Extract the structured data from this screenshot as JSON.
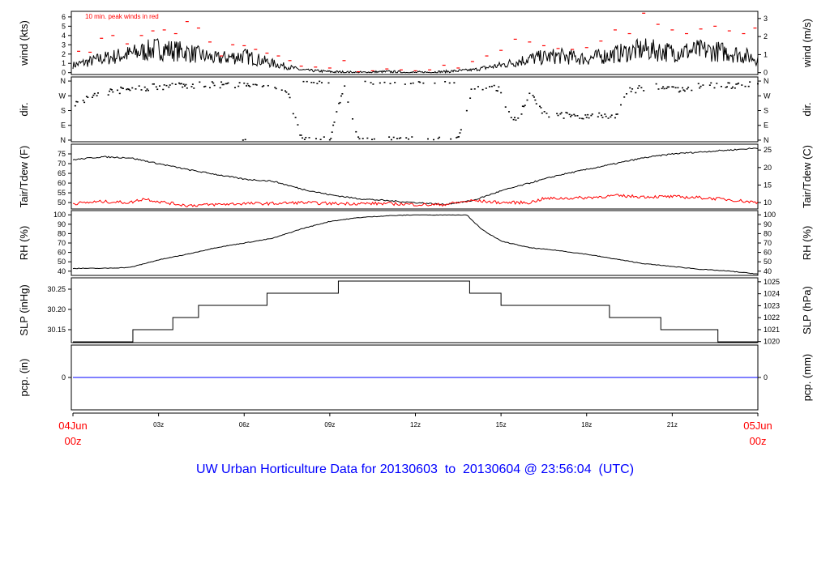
{
  "chart_data": {
    "type": "line",
    "title": "UW Urban Horticulture Data for 20130603  to  20130604 @ 23:56:04  (UTC)",
    "x_range_hours": [
      0,
      24
    ],
    "x_ticks": [
      {
        "h": 0,
        "label": "04Jun",
        "label2": "00z",
        "major": true
      },
      {
        "h": 3,
        "label": "03z"
      },
      {
        "h": 6,
        "label": "06z"
      },
      {
        "h": 9,
        "label": "09z"
      },
      {
        "h": 12,
        "label": "12z"
      },
      {
        "h": 15,
        "label": "15z"
      },
      {
        "h": 18,
        "label": "18z"
      },
      {
        "h": 21,
        "label": "21z"
      },
      {
        "h": 24,
        "label": "05Jun",
        "label2": "00z",
        "major": true
      }
    ],
    "panels": [
      {
        "id": "wind",
        "ylabel": "wind (kts)",
        "ylabel_right": "wind (m/s)",
        "ylim": [
          -0.2,
          6.6
        ],
        "ticks": [
          "0",
          "1",
          "2",
          "3",
          "4",
          "5",
          "6"
        ],
        "right_ticks": [
          "0",
          "1",
          "2",
          "3"
        ],
        "right_factor": 1.944,
        "annotation": "10 min. peak winds in red",
        "series": [
          {
            "name": "wind",
            "color": "#000000",
            "x": [
              0,
              1,
              2,
              3,
              4,
              5,
              6,
              7,
              8,
              9,
              10,
              11,
              12,
              13,
              14,
              15,
              16,
              17,
              18,
              19,
              20,
              21,
              22,
              23,
              24
            ],
            "y": [
              0.8,
              1.5,
              2.0,
              2.6,
              2.2,
              1.5,
              1.8,
              1.0,
              0.3,
              0.1,
              0,
              0.1,
              0,
              0.1,
              0.3,
              0.8,
              1.5,
              1.8,
              1.5,
              2.0,
              2.5,
              2.2,
              2.4,
              2.2,
              1.5
            ]
          },
          {
            "name": "peak",
            "color": "#ff0000",
            "style": "dash",
            "x": [
              0.2,
              0.6,
              1,
              1.4,
              1.9,
              2.4,
              2.8,
              3.2,
              3.6,
              4,
              4.4,
              4.8,
              5.2,
              5.6,
              6,
              6.4,
              6.8,
              7.2,
              7.6,
              8,
              8.5,
              9,
              9.5,
              10,
              10.5,
              11,
              11.5,
              12,
              12.5,
              13,
              13.5,
              14,
              14.5,
              15,
              15.5,
              16,
              16.5,
              17,
              17.5,
              18,
              18.5,
              19,
              19.5,
              20,
              20.5,
              21,
              21.5,
              22,
              22.5,
              23,
              23.5,
              23.9
            ],
            "y": [
              2.3,
              2.2,
              3.7,
              4.0,
              3.1,
              4.0,
              4.5,
              4.6,
              4.2,
              5.5,
              4.8,
              3.3,
              1.8,
              3.0,
              2.9,
              2.5,
              2.1,
              1.8,
              1.3,
              0.7,
              0.6,
              0.5,
              1.3,
              0.1,
              0.2,
              0.4,
              0.3,
              0.2,
              0.3,
              0.8,
              0.5,
              1.2,
              1.8,
              2.4,
              3.6,
              3.3,
              2.9,
              2.6,
              2.5,
              2.7,
              3.4,
              4.6,
              4.2,
              6.4,
              5.2,
              4.6,
              4.2,
              4.7,
              5.0,
              4.5,
              4.2,
              4.8
            ]
          }
        ]
      },
      {
        "id": "dir",
        "ylabel": "dir.",
        "ylabel_right": "dir.",
        "ylim": [
          -10,
          385
        ],
        "ticks": [
          "N",
          "E",
          "S",
          "W",
          "N"
        ],
        "tick_values": [
          0,
          90,
          180,
          270,
          360
        ],
        "series": [
          {
            "name": "direction",
            "color": "#000000",
            "style": "points",
            "x": [
              0,
              0.5,
              1,
              1.5,
              2,
              2.5,
              3,
              3.5,
              4,
              4.5,
              5,
              5.5,
              6,
              6.5,
              7,
              7.5,
              8,
              8.5,
              9,
              9.5,
              10,
              11,
              12,
              13,
              13.5,
              14,
              14.5,
              15,
              15.3,
              15.6,
              16,
              16.5,
              17,
              17.5,
              18,
              18.5,
              19,
              19.5,
              20,
              20.5,
              21,
              21.5,
              22,
              22.5,
              23,
              23.5,
              24
            ],
            "y": [
              220,
              250,
              290,
              300,
              310,
              320,
              325,
              330,
              330,
              335,
              340,
              335,
              345,
              335,
              320,
              300,
              10,
              5,
              0,
              330,
              0,
              0,
              0,
              0,
              0,
              320,
              330,
              300,
              150,
              120,
              290,
              160,
              150,
              150,
              150,
              145,
              150,
              300,
              320,
              330,
              320,
              300,
              340,
              330,
              330,
              340,
              345
            ]
          }
        ]
      },
      {
        "id": "temp",
        "ylabel": "Tair/Tdew (F)",
        "ylabel_right": "Tair/Tdew (C)",
        "ylim": [
          46.7,
          80
        ],
        "ticks": [
          "50",
          "55",
          "60",
          "65",
          "70",
          "75"
        ],
        "right_ticks": [
          "10",
          "15",
          "20",
          "25"
        ],
        "series": [
          {
            "name": "Tair",
            "color": "#000000",
            "x": [
              0,
              1,
              2,
              3,
              4,
              5,
              6,
              7,
              8,
              9,
              10,
              11,
              12,
              13,
              14,
              15,
              16,
              17,
              18,
              19,
              20,
              21,
              22,
              23,
              24
            ],
            "y": [
              72,
              73.5,
              73,
              70,
              67,
              64.5,
              62,
              61,
              57,
              54,
              52,
              51,
              50,
              49,
              51,
              56,
              60,
              64,
              67,
              70,
              73,
              75,
              76,
              77,
              78
            ]
          },
          {
            "name": "Tdew",
            "color": "#ff0000",
            "x": [
              0,
              1,
              2,
              2.5,
              3,
              4,
              5,
              6,
              7,
              8,
              9,
              10,
              11,
              12,
              12.5,
              13,
              14,
              15,
              16,
              16.5,
              18,
              19,
              20,
              21,
              22,
              23,
              24
            ],
            "y": [
              49.5,
              50.5,
              50,
              52,
              50.5,
              48.5,
              49,
              49.5,
              49.5,
              50,
              49.5,
              49.5,
              49.5,
              49,
              48.8,
              49,
              51,
              50,
              50,
              52,
              52.5,
              53.5,
              53,
              53,
              52.5,
              51.5,
              50
            ]
          }
        ]
      },
      {
        "id": "rh",
        "ylabel": "RH (%)",
        "ylabel_right": "RH (%)",
        "ylim": [
          35.5,
          104.5
        ],
        "ticks": [
          "40",
          "50",
          "60",
          "70",
          "80",
          "90",
          "100"
        ],
        "right_ticks": [
          "40",
          "50",
          "60",
          "70",
          "80",
          "90",
          "100"
        ],
        "series": [
          {
            "name": "RH",
            "color": "#000000",
            "x": [
              0,
              1,
              2,
              3,
              4,
              5,
              6,
              7,
              8,
              9,
              10,
              11,
              12,
              13,
              13.8,
              14.3,
              15,
              16,
              17,
              18,
              19,
              20,
              21,
              22,
              23,
              24
            ],
            "y": [
              43,
              43,
              44,
              52,
              58,
              65,
              70,
              75,
              85,
              93,
              97,
              99,
              100,
              100,
              100,
              85,
              72,
              65,
              62,
              58,
              53,
              48,
              45,
              42,
              40,
              37
            ]
          }
        ]
      },
      {
        "id": "slp",
        "ylabel": "SLP (inHg)",
        "ylabel_right": "SLP (hPa)",
        "ylim": [
          30.118,
          30.278
        ],
        "ticks": [
          "30.15",
          "30.20",
          "30.25"
        ],
        "right_ticks": [
          "1020",
          "1021",
          "1022",
          "1023",
          "1024",
          "1025"
        ],
        "right_factor": 0.02953,
        "series": [
          {
            "name": "SLP",
            "color": "#000000",
            "style": "step",
            "x": [
              0,
              2.1,
              3.5,
              4.4,
              6.8,
              9.3,
              13.9,
              15.0,
              18.8,
              20.6,
              22.6,
              24
            ],
            "y": [
              30.12,
              30.15,
              30.18,
              30.21,
              30.24,
              30.27,
              30.24,
              30.21,
              30.18,
              30.15,
              30.12,
              30.12
            ]
          }
        ]
      },
      {
        "id": "pcp",
        "ylabel": "pcp. (in)",
        "ylabel_right": "pcp. (mm)",
        "ylim": [
          -1,
          1
        ],
        "ticks": [
          "0"
        ],
        "right_ticks": [
          "0"
        ],
        "series": [
          {
            "name": "pcp",
            "color": "#0000ff",
            "x": [
              0,
              24
            ],
            "y": [
              0,
              0
            ]
          }
        ]
      }
    ]
  }
}
